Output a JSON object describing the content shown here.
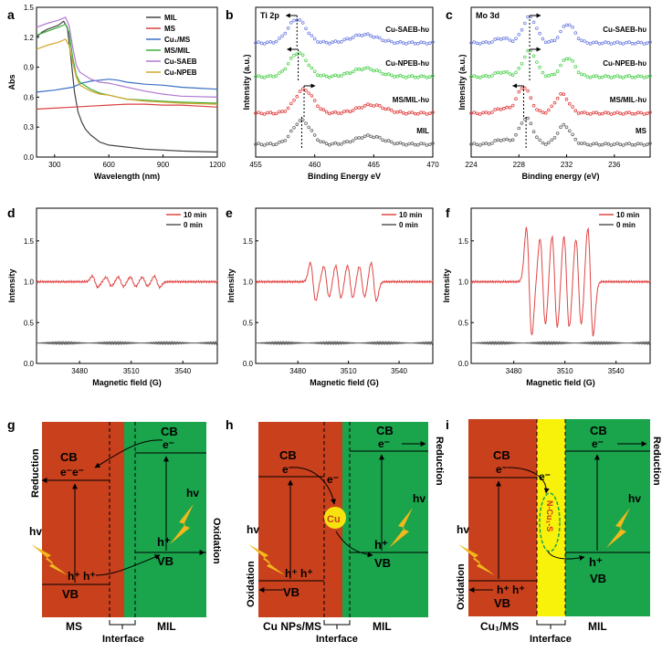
{
  "chart_data": [
    {
      "panel": "a",
      "type": "line",
      "xlabel": "Wavelength (nm)",
      "ylabel": "Abs",
      "xlim": [
        200,
        1200
      ],
      "ylim": [
        0,
        1.5
      ],
      "xticks": [
        "300",
        "600",
        "900",
        "1200"
      ],
      "yticks": [
        "0.0",
        "0.3",
        "0.6",
        "0.9",
        "1.2",
        "1.5"
      ],
      "legend": "top-right",
      "series": [
        {
          "name": "MIL",
          "color": "#444444",
          "x": [
            200,
            230,
            260,
            290,
            320,
            350,
            370,
            390,
            410,
            430,
            450,
            470,
            500,
            550,
            600,
            700,
            800,
            1000,
            1200
          ],
          "y": [
            1.2,
            1.25,
            1.28,
            1.3,
            1.32,
            1.36,
            1.3,
            1.0,
            0.65,
            0.45,
            0.35,
            0.28,
            0.22,
            0.15,
            0.12,
            0.1,
            0.08,
            0.06,
            0.05
          ]
        },
        {
          "name": "MS",
          "color": "#d94040",
          "x": [
            200,
            300,
            400,
            500,
            600,
            700,
            800,
            900,
            1000,
            1100,
            1200
          ],
          "y": [
            0.48,
            0.49,
            0.5,
            0.51,
            0.52,
            0.53,
            0.53,
            0.52,
            0.52,
            0.51,
            0.5
          ]
        },
        {
          "name": "Cu₁/MS",
          "color": "#3a6fc4",
          "x": [
            200,
            300,
            400,
            450,
            500,
            600,
            650,
            700,
            800,
            900,
            1000,
            1100,
            1200
          ],
          "y": [
            0.65,
            0.67,
            0.7,
            0.74,
            0.76,
            0.78,
            0.77,
            0.75,
            0.73,
            0.72,
            0.7,
            0.69,
            0.68
          ]
        },
        {
          "name": "MS/MIL",
          "color": "#3cae3c",
          "x": [
            200,
            260,
            320,
            360,
            380,
            400,
            420,
            440,
            500,
            550,
            600,
            700,
            800,
            900,
            1000,
            1200
          ],
          "y": [
            1.22,
            1.26,
            1.3,
            1.33,
            1.25,
            1.0,
            0.82,
            0.75,
            0.68,
            0.64,
            0.62,
            0.58,
            0.57,
            0.56,
            0.55,
            0.54
          ]
        },
        {
          "name": "Cu-SAEB",
          "color": "#b07ad0",
          "x": [
            200,
            260,
            320,
            360,
            380,
            400,
            420,
            440,
            500,
            550,
            600,
            700,
            800,
            900,
            1000,
            1200
          ],
          "y": [
            1.3,
            1.34,
            1.37,
            1.4,
            1.32,
            1.1,
            0.92,
            0.85,
            0.78,
            0.75,
            0.74,
            0.7,
            0.66,
            0.63,
            0.61,
            0.6
          ]
        },
        {
          "name": "Cu-NPEB",
          "color": "#d4a82a",
          "x": [
            200,
            260,
            320,
            360,
            380,
            400,
            420,
            440,
            500,
            550,
            600,
            700,
            800,
            900,
            1000,
            1200
          ],
          "y": [
            1.08,
            1.12,
            1.15,
            1.18,
            1.12,
            0.95,
            0.8,
            0.72,
            0.66,
            0.63,
            0.62,
            0.58,
            0.56,
            0.55,
            0.54,
            0.53
          ]
        }
      ]
    },
    {
      "panel": "b",
      "type": "scatter",
      "title": "Ti 2p",
      "xlabel": "Binding Energy eV",
      "ylabel": "Intensity (a.u.)",
      "xlim": [
        455,
        470
      ],
      "xticks": [
        "455",
        "460",
        "465",
        "470"
      ],
      "series": [
        {
          "name": "MIL",
          "color": "#666666",
          "peak": 458.9
        },
        {
          "name": "MS/MIL-hυ",
          "color": "#e04040",
          "peak": 459.1
        },
        {
          "name": "Cu-NPEB-hυ",
          "color": "#4fd04f",
          "peak": 458.6
        },
        {
          "name": "Cu-SAEB-hυ",
          "color": "#7080e0",
          "peak": 458.5
        }
      ]
    },
    {
      "panel": "c",
      "type": "scatter",
      "title": "Mo 3d",
      "xlabel": "Binding energy (eV)",
      "ylabel": "Intensity (a.u.)",
      "xlim": [
        224,
        239
      ],
      "xticks": [
        "224",
        "228",
        "232",
        "236"
      ],
      "series": [
        {
          "name": "MS",
          "color": "#666666",
          "peak": 228.6
        },
        {
          "name": "MS/MIL-hυ",
          "color": "#e04040",
          "peak": 228.4
        },
        {
          "name": "Cu-NPEB-hυ",
          "color": "#4fd04f",
          "peak": 228.9
        },
        {
          "name": "Cu-SAEB-hυ",
          "color": "#7080e0",
          "peak": 228.9
        }
      ]
    },
    {
      "panel": "d",
      "type": "line",
      "xlabel": "Magnetic field (G)",
      "ylabel": "Intensity",
      "xlim": [
        3455,
        3560
      ],
      "ylim": [
        0,
        1.9
      ],
      "xticks": [
        "3480",
        "3510",
        "3540"
      ],
      "yticks": [
        "0.0",
        "0.5",
        "1.0",
        "1.5"
      ],
      "series": [
        {
          "name": "10 min",
          "color": "#e04545",
          "amplitude": 0.07
        },
        {
          "name": "0 min",
          "color": "#555555",
          "baseline": 0.25
        }
      ]
    },
    {
      "panel": "e",
      "type": "line",
      "xlabel": "Magnetic field (G)",
      "ylabel": "Intensity",
      "xlim": [
        3455,
        3560
      ],
      "ylim": [
        0,
        1.9
      ],
      "xticks": [
        "3480",
        "3510",
        "3540"
      ],
      "yticks": [
        "0.0",
        "0.5",
        "1.0",
        "1.5"
      ],
      "series": [
        {
          "name": "10 min",
          "color": "#e04545",
          "amplitude": 0.24
        },
        {
          "name": "0 min",
          "color": "#555555",
          "baseline": 0.25
        }
      ]
    },
    {
      "panel": "f",
      "type": "line",
      "xlabel": "Magnetic field (G)",
      "ylabel": "Intensity",
      "xlim": [
        3455,
        3560
      ],
      "ylim": [
        0,
        1.9
      ],
      "xticks": [
        "3480",
        "3510",
        "3540"
      ],
      "yticks": [
        "0.0",
        "0.5",
        "1.0",
        "1.5"
      ],
      "series": [
        {
          "name": "10 min",
          "color": "#e04545",
          "amplitude": 0.68
        },
        {
          "name": "0 min",
          "color": "#555555",
          "baseline": 0.25
        }
      ]
    }
  ],
  "panel_labels": {
    "a": "a",
    "b": "b",
    "c": "c",
    "d": "d",
    "e": "e",
    "f": "f",
    "g": "g",
    "h": "h",
    "i": "i"
  },
  "diagrams": {
    "g": {
      "cb": "CB",
      "vb": "VB",
      "cb_electrons": "e⁻e⁻",
      "mil_electron": "e⁻",
      "hole": "h⁺",
      "holes": "h⁺ h⁺",
      "hv": "hv",
      "reduction": "Reduction",
      "oxidation": "Oxidation",
      "left": "MS",
      "interface": "Interface",
      "right": "MIL"
    },
    "h": {
      "cb": "CB",
      "vb": "VB",
      "electron": "e⁻",
      "transfer_electron": "e⁻",
      "cu": "Cu",
      "hole": "h⁺",
      "holes": "h⁺ h⁺",
      "hv": "hv",
      "reduction": "Reduction",
      "oxidation": "Oxidation",
      "left": "Cu NPs/MS",
      "interface": "Interface",
      "right": "MIL"
    },
    "i": {
      "cb": "CB",
      "vb": "VB",
      "electron": "e⁻",
      "transfer_electron": "e⁻",
      "bond": "N-Cu₁-S",
      "hole": "h⁺",
      "holes": "h⁺ h⁺",
      "hv": "hv",
      "reduction": "Reduction",
      "oxidation": "Oxidation",
      "left": "Cu₁/MS",
      "interface": "Interface",
      "right": "MIL"
    }
  }
}
